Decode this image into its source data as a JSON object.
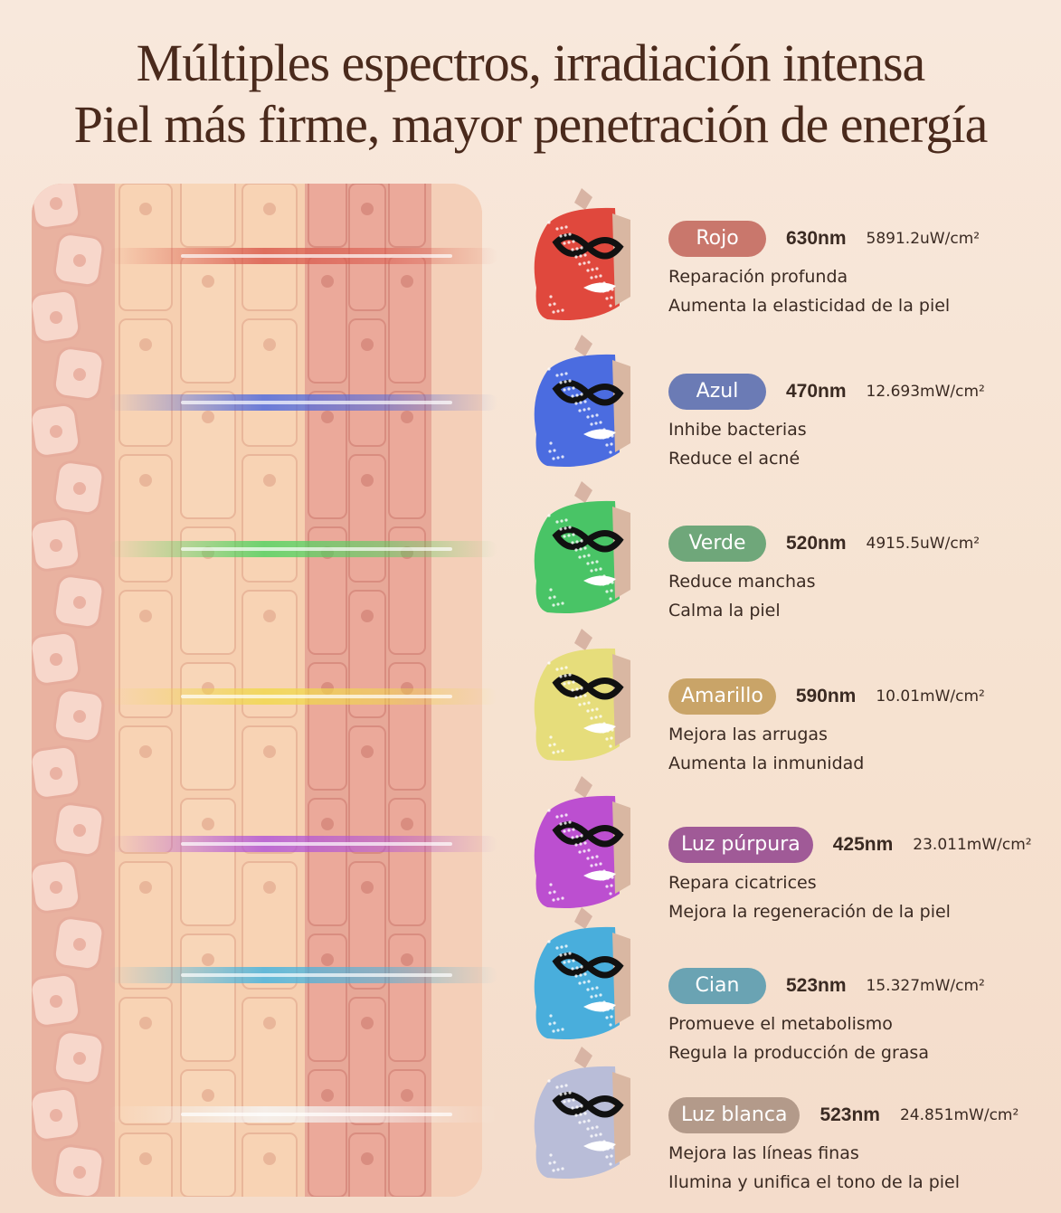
{
  "header": {
    "title": "Múltiples espectros, irradiación intensa",
    "subtitle": "Piel más firme, mayor penetración de energía"
  },
  "items": [
    {
      "label": "Rojo",
      "wavelength": "630nm",
      "irradiance": "5891.2uW/cm²",
      "lines": [
        "Reparación profunda",
        "Aumenta la elasticidad de la piel"
      ]
    },
    {
      "label": "Azul",
      "wavelength": "470nm",
      "irradiance": "12.693mW/cm²",
      "lines": [
        "Inhibe bacterias",
        "Reduce el acné"
      ]
    },
    {
      "label": "Verde",
      "wavelength": "520nm",
      "irradiance": "4915.5uW/cm²",
      "lines": [
        "Reduce manchas",
        "Calma la piel"
      ]
    },
    {
      "label": "Amarillo",
      "wavelength": "590nm",
      "irradiance": "10.01mW/cm²",
      "lines": [
        "Mejora las arrugas",
        "Aumenta la inmunidad"
      ]
    },
    {
      "label": "Luz púrpura",
      "wavelength": "425nm",
      "irradiance": "23.011mW/cm²",
      "lines": [
        "Repara cicatrices",
        "Mejora la regeneración de la piel"
      ]
    },
    {
      "label": "Cian",
      "wavelength": "523nm",
      "irradiance": "15.327mW/cm²",
      "lines": [
        "Promueve el metabolismo",
        "Regula la producción de grasa"
      ]
    },
    {
      "label": "Luz blanca",
      "wavelength": "523nm",
      "irradiance": "24.851mW/cm²",
      "lines": [
        "Mejora las líneas finas",
        "Ilumina y unifica el tono de la piel"
      ]
    }
  ]
}
